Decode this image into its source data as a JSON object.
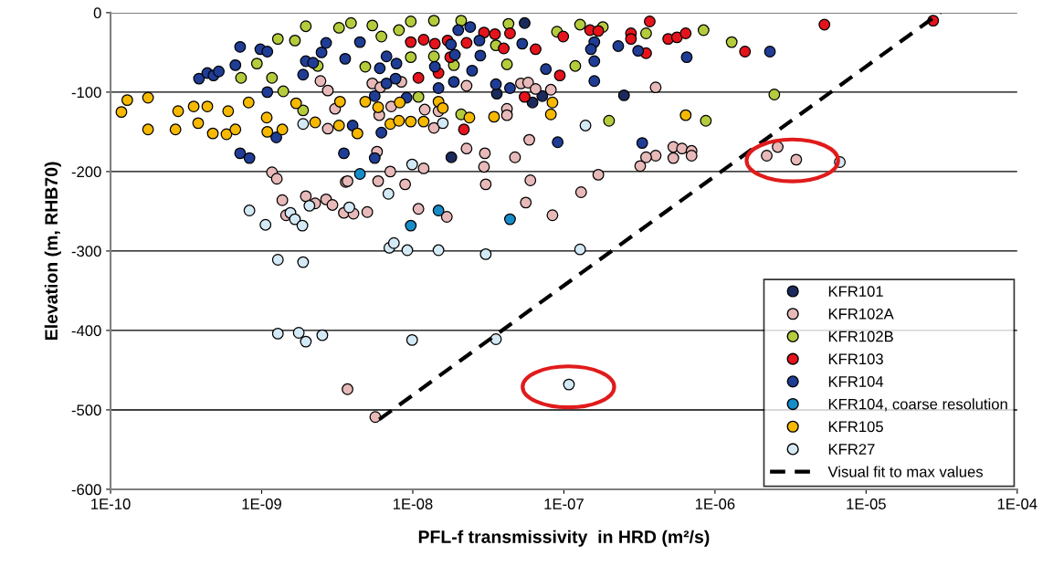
{
  "chart_data": {
    "type": "scatter",
    "xlabel": "PFL-f transmissivity  in HRD (m²/s)",
    "ylabel": "Elevation (m, RHB70)",
    "log": "x",
    "xlim": [
      1e-10,
      0.0001
    ],
    "ylim": [
      -600,
      0
    ],
    "xticks": [
      {
        "value": 1e-10,
        "label": "1E-10"
      },
      {
        "value": 1e-09,
        "label": "1E-09"
      },
      {
        "value": 1e-08,
        "label": "1E-08"
      },
      {
        "value": 1e-07,
        "label": "1E-07"
      },
      {
        "value": 1e-06,
        "label": "1E-06"
      },
      {
        "value": 1e-05,
        "label": "1E-05"
      },
      {
        "value": 0.0001,
        "label": "1E-04"
      }
    ],
    "yticks": [
      -600,
      -500,
      -400,
      -300,
      -200,
      -100,
      0
    ],
    "grid": "y",
    "legend": "bottom right",
    "marker": "circle",
    "series": [
      {
        "name": "KFR101",
        "color": "#1b2a5c",
        "x": [
          5.5e-08,
          3.6e-08,
          6.2e-08,
          7.2e-08,
          2.5e-07,
          1.8e-08
        ],
        "values": [
          -13,
          -102,
          -113,
          -105,
          -104,
          -182
        ]
      },
      {
        "name": "KFR102A",
        "color": "#e8b9b9",
        "x": [
          2.45e-09,
          2.74e-09,
          5.4e-09,
          6.1e-09,
          6e-09,
          3.06e-09,
          2.74e-09,
          7.2e-09,
          1.17e-09,
          1.26e-09,
          3.6e-09,
          5.8e-09,
          5.9e-09,
          7.1e-09,
          8.9e-09,
          8.4e-09,
          2.27e-08,
          5.2e-08,
          5.8e-08,
          6.5e-08,
          8.2e-08,
          1.2e-08,
          1.48e-08,
          1.38e-08,
          4.2e-08,
          4.2e-08,
          4.05e-07,
          5.9e-08,
          2.27e-08,
          3e-08,
          4.75e-08,
          1.18e-08,
          2.96e-08,
          5.3e-07,
          6.05e-07,
          7e-07,
          7e-07,
          5.3e-07,
          4.05e-07,
          3.5e-07,
          3.2e-07,
          1.69e-07,
          1.37e-09,
          1.96e-09,
          2.26e-09,
          2.67e-09,
          2.94e-09,
          3.5e-09,
          4.05e-09,
          5e-09,
          1.45e-09,
          3.7e-09,
          1.09e-08,
          1.68e-08,
          3.04e-08,
          5.6e-08,
          8.4e-08,
          1.3e-07,
          6e-08,
          3.7e-09,
          5.65e-09,
          2.2e-06,
          2.6e-06,
          3.45e-06
        ],
        "values": [
          -86,
          -98,
          -89,
          -94,
          -129,
          -121,
          -146,
          -118,
          -201,
          -209,
          -213,
          -175,
          -212,
          -200,
          -216,
          -87,
          -92,
          -89,
          -88,
          -96,
          -97,
          -122,
          -124,
          -145,
          -121,
          -129,
          -94,
          -160,
          -171,
          -177,
          -182,
          -196,
          -194,
          -169,
          -171,
          -174,
          -180,
          -183,
          -180,
          -182,
          -193,
          -204,
          -236,
          -231,
          -240,
          -235,
          -242,
          -252,
          -253,
          -251,
          -255,
          -212,
          -247,
          -257,
          -216,
          -239,
          -255,
          -226,
          -211,
          -474,
          -509,
          -180,
          -169,
          -185
        ]
      },
      {
        "name": "KFR102B",
        "color": "#b4cc3c",
        "x": [
          1.96e-09,
          3.25e-09,
          3.9e-09,
          5.4e-09,
          6.2e-09,
          1.28e-09,
          1.66e-09,
          9.3e-10,
          7.3e-10,
          1.17e-09,
          1.39e-09,
          2.35e-09,
          4.85e-09,
          8.1e-09,
          9.7e-09,
          9.7e-09,
          1.88e-09,
          1.38e-08,
          2.09e-08,
          4.3e-08,
          1.38e-08,
          1.87e-08,
          3.55e-08,
          4.2e-08,
          9e-08,
          1.28e-07,
          1.81e-07,
          1.19e-07,
          3.5e-07,
          8.4e-07,
          1.09e-08,
          2.09e-08,
          1.99e-07,
          8.7e-07,
          1.29e-06,
          2.47e-06
        ],
        "values": [
          -17,
          -19,
          -13,
          -16,
          -30,
          -33,
          -35,
          -64,
          -82,
          -82,
          -99,
          -67,
          -68,
          -22,
          -11,
          -56,
          -123,
          -10,
          -10,
          -14,
          -55,
          -66,
          -41,
          -65,
          -24,
          -15,
          -18,
          -67,
          -26,
          -22,
          -106,
          -128,
          -136,
          -136,
          -37,
          -103
        ]
      },
      {
        "name": "KFR103",
        "color": "#e5131c",
        "x": [
          9.7e-09,
          1.18e-08,
          1.4e-08,
          1.7e-08,
          2.27e-08,
          2.96e-08,
          3.5e-08,
          4.4e-08,
          1.48e-08,
          1.09e-08,
          1.77e-08,
          4e-08,
          6.5e-08,
          9.9e-08,
          9.4e-08,
          1.49e-07,
          1.69e-07,
          2.78e-07,
          3.7e-07,
          2.78e-07,
          3.5e-07,
          4.9e-07,
          5.6e-07,
          6.4e-07,
          5.5e-08,
          2.18e-08,
          1.58e-06,
          5.3e-06,
          2.78e-05
        ],
        "values": [
          -37,
          -34,
          -39,
          -35,
          -38,
          -25,
          -27,
          -26,
          -76,
          -82,
          -56,
          -45,
          -46,
          -30,
          -79,
          -22,
          -23,
          -26,
          -11,
          -33,
          -51,
          -33,
          -31,
          -26,
          -106,
          -147,
          -49,
          -15,
          -10
        ]
      },
      {
        "name": "KFR104",
        "color": "#1f3d95",
        "x": [
          3.85e-10,
          4.37e-10,
          4.8e-10,
          5.2e-10,
          7.2e-10,
          6.7e-10,
          9.8e-10,
          1.09e-09,
          1.09e-09,
          1.96e-09,
          2.19e-09,
          1.88e-09,
          2.49e-09,
          2.67e-09,
          3.57e-09,
          4.47e-09,
          6.05e-09,
          6.7e-09,
          7.8e-09,
          6.7e-09,
          7.7e-09,
          9.1e-09,
          5.6e-09,
          6.2e-09,
          4e-09,
          1.25e-09,
          7.2e-10,
          8.3e-10,
          3.5e-09,
          5.6e-09,
          2e-08,
          2.4e-08,
          1.79e-08,
          1.9e-08,
          2.76e-08,
          2.8e-08,
          1.4e-08,
          2.47e-08,
          1.87e-08,
          1.48e-08,
          3.55e-08,
          4.4e-08,
          7.6e-08,
          5.3e-08,
          1.59e-07,
          1.51e-07,
          1.59e-07,
          1.59e-07,
          2.29e-07,
          3.1e-07,
          6.5e-07,
          9.1e-08,
          3.3e-07,
          2.31e-06
        ],
        "values": [
          -83,
          -76,
          -79,
          -74,
          -43,
          -66,
          -46,
          -49,
          -100,
          -61,
          -63,
          -78,
          -50,
          -38,
          -58,
          -37,
          -70,
          -55,
          -64,
          -89,
          -83,
          -107,
          -105,
          -151,
          -142,
          -157,
          -177,
          -183,
          -177,
          -183,
          -22,
          -18,
          -40,
          -53,
          -35,
          -54,
          -68,
          -73,
          -87,
          -95,
          -90,
          -95,
          -71,
          -39,
          -37,
          -46,
          -61,
          -86,
          -42,
          -48,
          -56,
          -163,
          -164,
          -49
        ]
      },
      {
        "name": "KFR104, coarse resolution",
        "color": "#168cc9",
        "x": [
          4.47e-09,
          9.7e-09,
          1.48e-08,
          4.4e-08
        ],
        "values": [
          -203,
          -268,
          -249,
          -260
        ]
      },
      {
        "name": "KFR105",
        "color": "#f6b900",
        "x": [
          1.29e-10,
          1.18e-10,
          1.77e-10,
          1.77e-10,
          2.69e-10,
          2.8e-10,
          3.55e-10,
          3.8e-10,
          4.37e-10,
          4.75e-10,
          6e-10,
          5.85e-10,
          8.2e-10,
          6.7e-10,
          1.08e-09,
          1.09e-09,
          1.37e-09,
          1.69e-09,
          2.26e-09,
          3.3e-09,
          3.25e-09,
          4.3e-09,
          4.85e-09,
          5.9e-09,
          7.1e-09,
          8.1e-09,
          8.2e-09,
          1.48e-08,
          1.58e-08,
          9.7e-09,
          1.18e-08,
          2.37e-08,
          3.45e-08,
          8.4e-08,
          8.2e-08,
          6.4e-07
        ],
        "values": [
          -110,
          -125,
          -107,
          -147,
          -147,
          -124,
          -118,
          -139,
          -118,
          -152,
          -124,
          -153,
          -113,
          -147,
          -132,
          -150,
          -147,
          -114,
          -138,
          -112,
          -142,
          -152,
          -112,
          -119,
          -140,
          -136,
          -113,
          -112,
          -120,
          -137,
          -137,
          -132,
          -131,
          -113,
          -128,
          -129
        ]
      },
      {
        "name": "KFR27",
        "color": "#d4e9f6",
        "x": [
          8.3e-10,
          1.06e-09,
          1.55e-09,
          1.66e-09,
          1.86e-09,
          2.07e-09,
          3.8e-09,
          6.9e-09,
          9.9e-09,
          7e-09,
          7.5e-09,
          9.2e-09,
          1.48e-08,
          3.04e-08,
          1.28e-07,
          1.28e-09,
          1.88e-09,
          1.28e-09,
          1.76e-09,
          1.96e-09,
          2.52e-09,
          9.9e-09,
          3.55e-08,
          1.08e-07,
          6.7e-06,
          1.88e-09,
          1.58e-08,
          1.39e-07
        ],
        "values": [
          -249,
          -267,
          -252,
          -260,
          -268,
          -243,
          -245,
          -228,
          -191,
          -296,
          -290,
          -299,
          -299,
          -304,
          -298,
          -311,
          -314,
          -404,
          -403,
          -414,
          -406,
          -412,
          -411,
          -468,
          -188,
          -140,
          -139,
          -142
        ]
      },
      {
        "name": "Visual fit to max values",
        "type": "line",
        "color": "#000000",
        "line_style": "dashed",
        "marker": "none",
        "x": [
          6e-09,
          3.1e-05
        ],
        "values": [
          -512,
          0
        ]
      }
    ]
  }
}
